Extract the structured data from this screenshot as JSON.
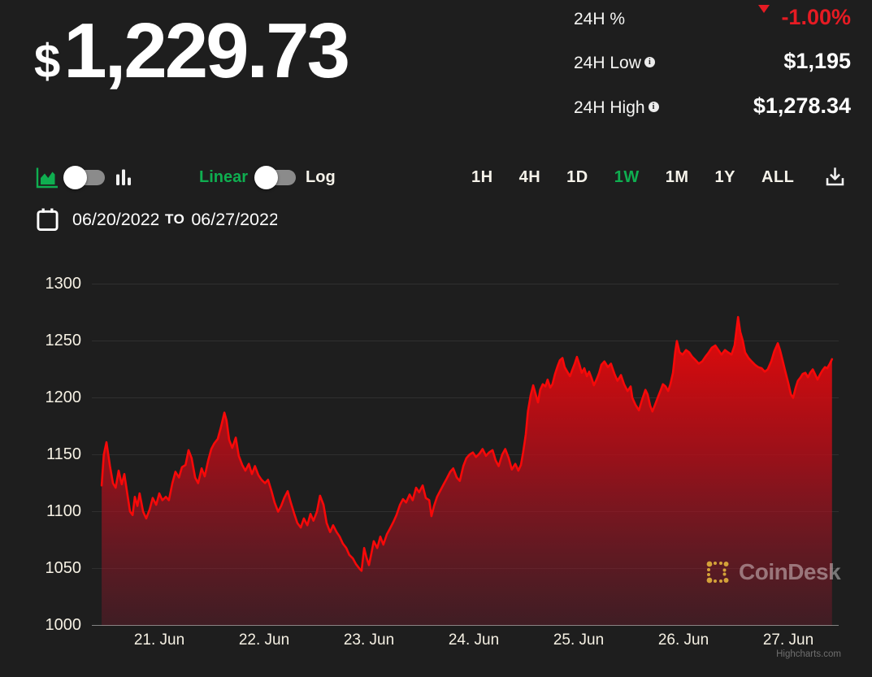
{
  "header": {
    "price_currency": "$",
    "price": "1,229.73",
    "info_glyph": "i",
    "stats": [
      {
        "label": "24H %",
        "value": "-1.00%",
        "direction": "down",
        "value_color": "#e61b23",
        "info": false
      },
      {
        "label": "24H Low",
        "value": "$1,195",
        "info": true
      },
      {
        "label": "24H High",
        "value": "$1,278.34",
        "info": true
      }
    ]
  },
  "toolbar": {
    "chart_type_icons": [
      "area-chart-icon",
      "bar-chart-icon"
    ],
    "chart_type_toggle_state": "area",
    "scale": {
      "left_label": "Linear",
      "right_label": "Log",
      "selected": "Linear"
    },
    "accent_green": "#0fae50",
    "ranges": [
      {
        "label": "1H",
        "active": false
      },
      {
        "label": "4H",
        "active": false
      },
      {
        "label": "1D",
        "active": false
      },
      {
        "label": "1W",
        "active": true
      },
      {
        "label": "1M",
        "active": false
      },
      {
        "label": "1Y",
        "active": false
      },
      {
        "label": "ALL",
        "active": false
      }
    ]
  },
  "date_range": {
    "from": "06/20/2022",
    "separator": "TO",
    "to": "06/27/2022"
  },
  "watermark": {
    "icon": "coindesk-logo-icon",
    "text": "CoinDesk",
    "icon_color": "#d4a239"
  },
  "credit": "Highcharts.com",
  "chart_data": {
    "type": "area",
    "title": "ETH price, 1 week (values read from axes)",
    "x_unit": "hours since 2022-06-20 00:00",
    "xlim_hours": [
      8.6,
      179.5
    ],
    "ylim": [
      1000,
      1300
    ],
    "y_ticks": [
      1000,
      1050,
      1100,
      1150,
      1200,
      1250,
      1300
    ],
    "x_ticks": [
      {
        "t": 24,
        "label": "21. Jun"
      },
      {
        "t": 48,
        "label": "22. Jun"
      },
      {
        "t": 72,
        "label": "23. Jun"
      },
      {
        "t": 96,
        "label": "24. Jun"
      },
      {
        "t": 120,
        "label": "25. Jun"
      },
      {
        "t": 144,
        "label": "26. Jun"
      },
      {
        "t": 168,
        "label": "27. Jun"
      }
    ],
    "grid_on": true,
    "legend": "none",
    "line_color": "#f60909",
    "grid_color": "rgba(255,255,255,0.08)",
    "axis_color": "rgba(255,255,255,0.45)",
    "fill_gradient": [
      {
        "offset": 0,
        "color": "#f20808",
        "opacity": 0.97
      },
      {
        "offset": 0.45,
        "color": "#ba0d18",
        "opacity": 0.8
      },
      {
        "offset": 1,
        "color": "#8c1b30",
        "opacity": 0.3
      }
    ],
    "points": [
      [
        10.8,
        1123
      ],
      [
        11.3,
        1150
      ],
      [
        11.9,
        1161
      ],
      [
        12.7,
        1140
      ],
      [
        13.4,
        1125
      ],
      [
        14.0,
        1121
      ],
      [
        14.7,
        1136
      ],
      [
        15.4,
        1124
      ],
      [
        16.0,
        1133
      ],
      [
        16.7,
        1115
      ],
      [
        17.3,
        1100
      ],
      [
        17.9,
        1097
      ],
      [
        18.4,
        1113
      ],
      [
        19.0,
        1105
      ],
      [
        19.5,
        1116
      ],
      [
        20.3,
        1100
      ],
      [
        21.0,
        1094
      ],
      [
        21.8,
        1102
      ],
      [
        22.5,
        1112
      ],
      [
        23.3,
        1106
      ],
      [
        24.0,
        1116
      ],
      [
        24.7,
        1110
      ],
      [
        25.5,
        1113
      ],
      [
        26.2,
        1110
      ],
      [
        27.0,
        1125
      ],
      [
        27.7,
        1135
      ],
      [
        28.5,
        1130
      ],
      [
        29.2,
        1139
      ],
      [
        30.0,
        1141
      ],
      [
        30.7,
        1154
      ],
      [
        31.4,
        1147
      ],
      [
        32.2,
        1130
      ],
      [
        32.9,
        1125
      ],
      [
        33.7,
        1138
      ],
      [
        34.4,
        1131
      ],
      [
        35.2,
        1145
      ],
      [
        35.9,
        1155
      ],
      [
        36.6,
        1160
      ],
      [
        37.4,
        1164
      ],
      [
        38.1,
        1174
      ],
      [
        38.9,
        1187
      ],
      [
        39.4,
        1180
      ],
      [
        40.0,
        1163
      ],
      [
        40.7,
        1156
      ],
      [
        41.5,
        1165
      ],
      [
        42.2,
        1149
      ],
      [
        43.0,
        1141
      ],
      [
        43.7,
        1136
      ],
      [
        44.5,
        1142
      ],
      [
        45.2,
        1133
      ],
      [
        45.9,
        1140
      ],
      [
        46.7,
        1132
      ],
      [
        47.4,
        1128
      ],
      [
        48.2,
        1125
      ],
      [
        48.9,
        1128
      ],
      [
        49.7,
        1118
      ],
      [
        50.4,
        1108
      ],
      [
        51.2,
        1100
      ],
      [
        51.9,
        1105
      ],
      [
        52.6,
        1112
      ],
      [
        53.4,
        1118
      ],
      [
        54.1,
        1108
      ],
      [
        54.9,
        1098
      ],
      [
        55.6,
        1090
      ],
      [
        56.4,
        1086
      ],
      [
        57.1,
        1094
      ],
      [
        57.9,
        1088
      ],
      [
        58.6,
        1098
      ],
      [
        59.3,
        1092
      ],
      [
        60.1,
        1100
      ],
      [
        60.8,
        1114
      ],
      [
        61.6,
        1106
      ],
      [
        62.3,
        1090
      ],
      [
        63.1,
        1082
      ],
      [
        63.8,
        1088
      ],
      [
        64.6,
        1082
      ],
      [
        65.3,
        1078
      ],
      [
        66.0,
        1072
      ],
      [
        66.8,
        1068
      ],
      [
        67.5,
        1062
      ],
      [
        68.3,
        1059
      ],
      [
        69.0,
        1054
      ],
      [
        69.8,
        1050
      ],
      [
        70.3,
        1048
      ],
      [
        70.9,
        1068
      ],
      [
        71.4,
        1060
      ],
      [
        72.0,
        1053
      ],
      [
        72.6,
        1064
      ],
      [
        73.1,
        1074
      ],
      [
        73.9,
        1068
      ],
      [
        74.6,
        1078
      ],
      [
        75.3,
        1071
      ],
      [
        76.1,
        1080
      ],
      [
        76.8,
        1085
      ],
      [
        77.6,
        1091
      ],
      [
        78.3,
        1097
      ],
      [
        79.1,
        1106
      ],
      [
        79.8,
        1111
      ],
      [
        80.5,
        1108
      ],
      [
        81.3,
        1115
      ],
      [
        82.0,
        1110
      ],
      [
        82.8,
        1121
      ],
      [
        83.5,
        1117
      ],
      [
        84.3,
        1123
      ],
      [
        85.0,
        1112
      ],
      [
        85.8,
        1110
      ],
      [
        86.3,
        1096
      ],
      [
        86.9,
        1105
      ],
      [
        87.6,
        1113
      ],
      [
        88.4,
        1119
      ],
      [
        89.1,
        1124
      ],
      [
        89.8,
        1129
      ],
      [
        90.6,
        1135
      ],
      [
        91.3,
        1138
      ],
      [
        92.1,
        1130
      ],
      [
        92.8,
        1127
      ],
      [
        93.6,
        1140
      ],
      [
        94.3,
        1147
      ],
      [
        95.0,
        1150
      ],
      [
        95.8,
        1152
      ],
      [
        96.5,
        1148
      ],
      [
        97.3,
        1151
      ],
      [
        98.0,
        1155
      ],
      [
        98.8,
        1149
      ],
      [
        99.5,
        1152
      ],
      [
        100.3,
        1154
      ],
      [
        101.0,
        1145
      ],
      [
        101.7,
        1140
      ],
      [
        102.5,
        1150
      ],
      [
        103.2,
        1155
      ],
      [
        104.0,
        1147
      ],
      [
        104.7,
        1137
      ],
      [
        105.5,
        1142
      ],
      [
        106.2,
        1136
      ],
      [
        106.8,
        1141
      ],
      [
        107.3,
        1152
      ],
      [
        107.9,
        1168
      ],
      [
        108.4,
        1188
      ],
      [
        109.0,
        1202
      ],
      [
        109.6,
        1211
      ],
      [
        110.1,
        1204
      ],
      [
        110.7,
        1196
      ],
      [
        111.2,
        1207
      ],
      [
        111.8,
        1212
      ],
      [
        112.4,
        1210
      ],
      [
        112.9,
        1216
      ],
      [
        113.5,
        1209
      ],
      [
        114.0,
        1212
      ],
      [
        114.6,
        1221
      ],
      [
        115.2,
        1228
      ],
      [
        115.7,
        1233
      ],
      [
        116.3,
        1235
      ],
      [
        116.8,
        1227
      ],
      [
        117.4,
        1223
      ],
      [
        118.0,
        1219
      ],
      [
        118.5,
        1224
      ],
      [
        119.1,
        1230
      ],
      [
        119.6,
        1236
      ],
      [
        120.2,
        1229
      ],
      [
        120.7,
        1222
      ],
      [
        121.3,
        1226
      ],
      [
        121.9,
        1219
      ],
      [
        122.4,
        1223
      ],
      [
        123.0,
        1217
      ],
      [
        123.5,
        1211
      ],
      [
        124.1,
        1216
      ],
      [
        124.7,
        1222
      ],
      [
        125.2,
        1229
      ],
      [
        125.9,
        1232
      ],
      [
        126.7,
        1227
      ],
      [
        127.4,
        1230
      ],
      [
        128.2,
        1221
      ],
      [
        128.9,
        1215
      ],
      [
        129.7,
        1220
      ],
      [
        130.4,
        1212
      ],
      [
        131.2,
        1206
      ],
      [
        131.9,
        1210
      ],
      [
        132.3,
        1200
      ],
      [
        133.0,
        1194
      ],
      [
        133.8,
        1189
      ],
      [
        134.5,
        1198
      ],
      [
        135.3,
        1207
      ],
      [
        135.8,
        1203
      ],
      [
        136.4,
        1193
      ],
      [
        136.9,
        1188
      ],
      [
        137.5,
        1194
      ],
      [
        138.2,
        1201
      ],
      [
        138.8,
        1207
      ],
      [
        139.3,
        1212
      ],
      [
        139.9,
        1210
      ],
      [
        140.5,
        1206
      ],
      [
        141.0,
        1212
      ],
      [
        141.6,
        1222
      ],
      [
        142.1,
        1240
      ],
      [
        142.5,
        1250
      ],
      [
        143.1,
        1240
      ],
      [
        143.8,
        1238
      ],
      [
        144.6,
        1242
      ],
      [
        145.3,
        1240
      ],
      [
        146.0,
        1236
      ],
      [
        146.8,
        1233
      ],
      [
        147.5,
        1230
      ],
      [
        148.3,
        1232
      ],
      [
        149.0,
        1236
      ],
      [
        149.8,
        1240
      ],
      [
        150.5,
        1244
      ],
      [
        151.3,
        1246
      ],
      [
        152.0,
        1242
      ],
      [
        152.7,
        1238
      ],
      [
        153.5,
        1242
      ],
      [
        154.2,
        1240
      ],
      [
        155.0,
        1238
      ],
      [
        155.7,
        1246
      ],
      [
        156.5,
        1271
      ],
      [
        157.0,
        1258
      ],
      [
        157.6,
        1250
      ],
      [
        158.1,
        1240
      ],
      [
        158.9,
        1235
      ],
      [
        159.6,
        1232
      ],
      [
        160.4,
        1229
      ],
      [
        161.1,
        1227
      ],
      [
        161.9,
        1226
      ],
      [
        162.6,
        1223
      ],
      [
        163.3,
        1225
      ],
      [
        164.1,
        1232
      ],
      [
        164.8,
        1241
      ],
      [
        165.6,
        1248
      ],
      [
        166.1,
        1242
      ],
      [
        166.7,
        1233
      ],
      [
        167.2,
        1225
      ],
      [
        168.0,
        1213
      ],
      [
        168.6,
        1203
      ],
      [
        169.1,
        1200
      ],
      [
        169.7,
        1209
      ],
      [
        170.2,
        1215
      ],
      [
        170.8,
        1218
      ],
      [
        171.3,
        1221
      ],
      [
        171.9,
        1222
      ],
      [
        172.5,
        1218
      ],
      [
        173.0,
        1222
      ],
      [
        173.6,
        1225
      ],
      [
        174.1,
        1221
      ],
      [
        174.7,
        1216
      ],
      [
        175.2,
        1220
      ],
      [
        175.8,
        1224
      ],
      [
        176.4,
        1227
      ],
      [
        176.9,
        1226
      ],
      [
        177.5,
        1230
      ],
      [
        178.0,
        1234
      ]
    ]
  }
}
